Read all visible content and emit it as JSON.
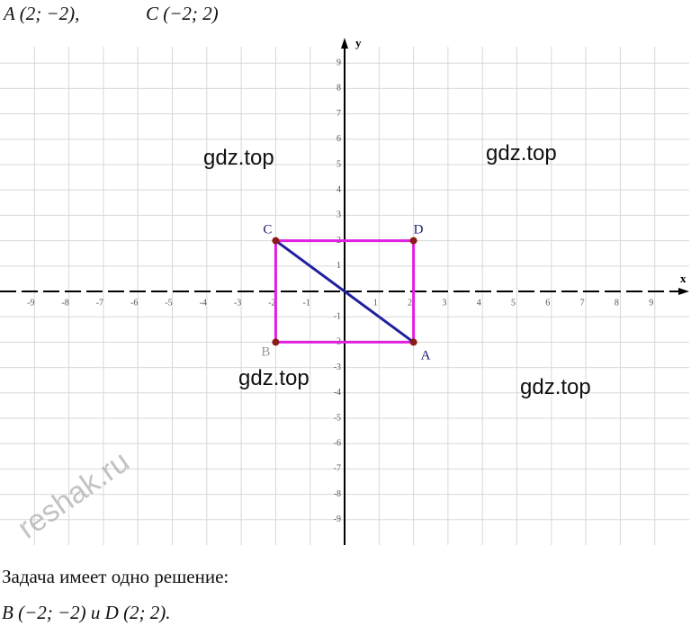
{
  "chart_data": {
    "type": "coordinate-plane",
    "header": [
      "A (2; −2),",
      "C (−2; 2)"
    ],
    "x_label": "x",
    "y_label": "y",
    "xlim": [
      -10,
      10
    ],
    "ylim": [
      -10,
      10
    ],
    "xticks": [
      -9,
      -8,
      -7,
      -6,
      -5,
      -4,
      -3,
      -2,
      -1,
      1,
      2,
      3,
      4,
      5,
      6,
      7,
      8,
      9
    ],
    "yticks": [
      -9,
      -8,
      -7,
      -6,
      -5,
      -4,
      -3,
      -2,
      -1,
      1,
      2,
      3,
      4,
      5,
      6,
      7,
      8,
      9
    ],
    "grid": true,
    "points": [
      {
        "label": "C",
        "x": -2,
        "y": 2
      },
      {
        "label": "D",
        "x": 2,
        "y": 2
      },
      {
        "label": "A",
        "x": 2,
        "y": -2
      },
      {
        "label": "B",
        "x": -2,
        "y": -2
      }
    ],
    "rectangle_color": "#e020e0",
    "diagonal_color": "#2020a0",
    "point_color": "#8b1a1a",
    "watermarks": [
      "gdz.top",
      "gdz.top",
      "gdz.top",
      "gdz.top",
      "reshak.ru"
    ],
    "footer": [
      "Задача имеет одно решение:",
      "B (−2; −2) и D (2; 2)."
    ]
  }
}
